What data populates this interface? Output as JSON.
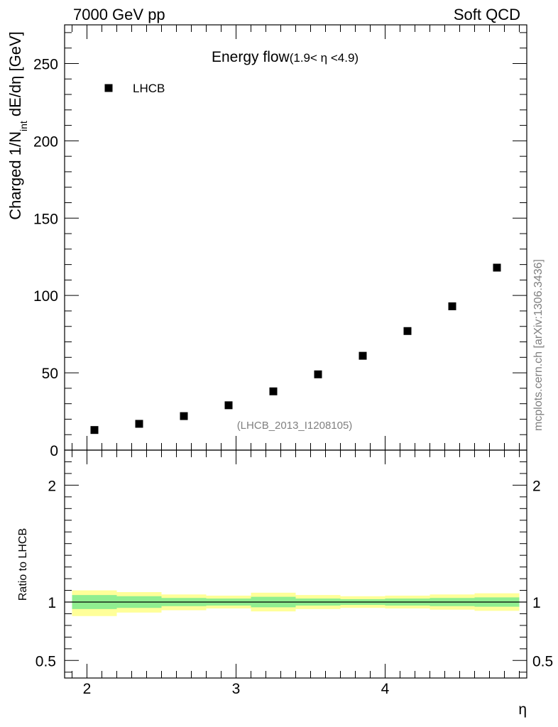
{
  "header": {
    "left": "7000 GeV pp",
    "right": "Soft QCD"
  },
  "watermark": "mcplots.cern.ch [arXiv:1306.3436]",
  "chart_data": [
    {
      "type": "scatter",
      "title": "Energy flow",
      "title_suffix": "(1.9< η <4.9)",
      "ylabel": "Charged 1/N",
      "ylabel_sub": "int",
      "ylabel_tail": " dE/dη [GeV]",
      "xlim": [
        1.85,
        4.95
      ],
      "ylim": [
        0,
        275
      ],
      "y_ticks": [
        0,
        50,
        100,
        150,
        200,
        250
      ],
      "y_tick_labels": [
        "0",
        "50",
        "100",
        "150",
        "200",
        "250"
      ],
      "legend": {
        "position": "top-left",
        "entries": [
          "LHCB"
        ]
      },
      "annotation": "(LHCB_2013_I1208105)",
      "series": [
        {
          "name": "LHCB",
          "color": "#000000",
          "x": [
            2.05,
            2.35,
            2.65,
            2.95,
            3.25,
            3.55,
            3.85,
            4.15,
            4.45,
            4.75
          ],
          "y": [
            13,
            17,
            22,
            29,
            38,
            49,
            61,
            77,
            93,
            118
          ]
        }
      ]
    },
    {
      "type": "area",
      "ylabel": "Ratio to LHCB",
      "xlabel": "η",
      "xlim": [
        1.85,
        4.95
      ],
      "ylim": [
        0.35,
        2.3
      ],
      "x_ticks": [
        2,
        3,
        4
      ],
      "x_tick_labels": [
        "2",
        "3",
        "4"
      ],
      "y_ticks": [
        0.5,
        1,
        2
      ],
      "y_tick_labels": [
        "0.5",
        "1",
        "2"
      ],
      "reference_line": 1,
      "bins": [
        [
          1.9,
          2.2
        ],
        [
          2.2,
          2.5
        ],
        [
          2.5,
          2.8
        ],
        [
          2.8,
          3.1
        ],
        [
          3.1,
          3.4
        ],
        [
          3.4,
          3.7
        ],
        [
          3.7,
          4.0
        ],
        [
          4.0,
          4.3
        ],
        [
          4.3,
          4.6
        ],
        [
          4.6,
          4.9
        ]
      ],
      "band_inner": {
        "color": "#90ee90",
        "lo": [
          0.94,
          0.95,
          0.965,
          0.97,
          0.955,
          0.97,
          0.975,
          0.97,
          0.965,
          0.96
        ],
        "hi": [
          1.06,
          1.05,
          1.035,
          1.03,
          1.045,
          1.03,
          1.025,
          1.03,
          1.035,
          1.04
        ]
      },
      "band_outer": {
        "color": "#ffff99",
        "lo": [
          0.88,
          0.91,
          0.93,
          0.945,
          0.92,
          0.94,
          0.95,
          0.945,
          0.935,
          0.925
        ],
        "hi": [
          1.1,
          1.085,
          1.065,
          1.055,
          1.08,
          1.06,
          1.05,
          1.055,
          1.065,
          1.075
        ]
      }
    }
  ]
}
